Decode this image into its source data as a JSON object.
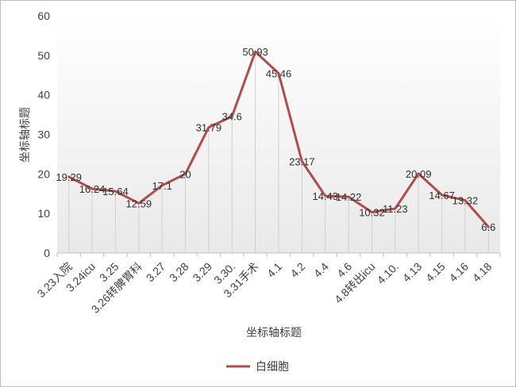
{
  "chart_data": {
    "type": "line",
    "categories": [
      "3.23入院",
      "3.24icu",
      "3.25",
      "3.26转脾胃科",
      "3.27",
      "3.28",
      "3.29",
      "3.30.",
      "3.31手术",
      "4.1",
      "4.2",
      "4.4",
      "4.6",
      "4.8转出icu",
      "4.10.",
      "4.13",
      "4.15",
      "4.16",
      "4.18"
    ],
    "series": [
      {
        "name": "白细胞",
        "values": [
          19.29,
          16.24,
          15.64,
          12.59,
          17.1,
          20,
          31.79,
          34.6,
          50.93,
          45.46,
          23.17,
          14.43,
          14.22,
          10.32,
          11.23,
          20.09,
          14.67,
          13.32,
          6.6
        ],
        "labels": [
          "19.29",
          "16.24",
          "15.64",
          "12.59",
          "17.1",
          "20",
          "31.79",
          "34.6",
          "50.93",
          "45.46",
          "23.17",
          "14.43",
          "14.22",
          "10.32",
          "11.23",
          "20.09",
          "14.67",
          "13.32",
          "6.6"
        ],
        "color": "#b34b4b"
      }
    ],
    "title": "",
    "xlabel": "坐标轴标题",
    "ylabel": "坐标轴标题",
    "ylim": [
      0,
      60
    ],
    "yticks": [
      "0",
      "10",
      "20",
      "30",
      "40",
      "50",
      "60"
    ],
    "grid": false,
    "legend_position": "bottom"
  }
}
